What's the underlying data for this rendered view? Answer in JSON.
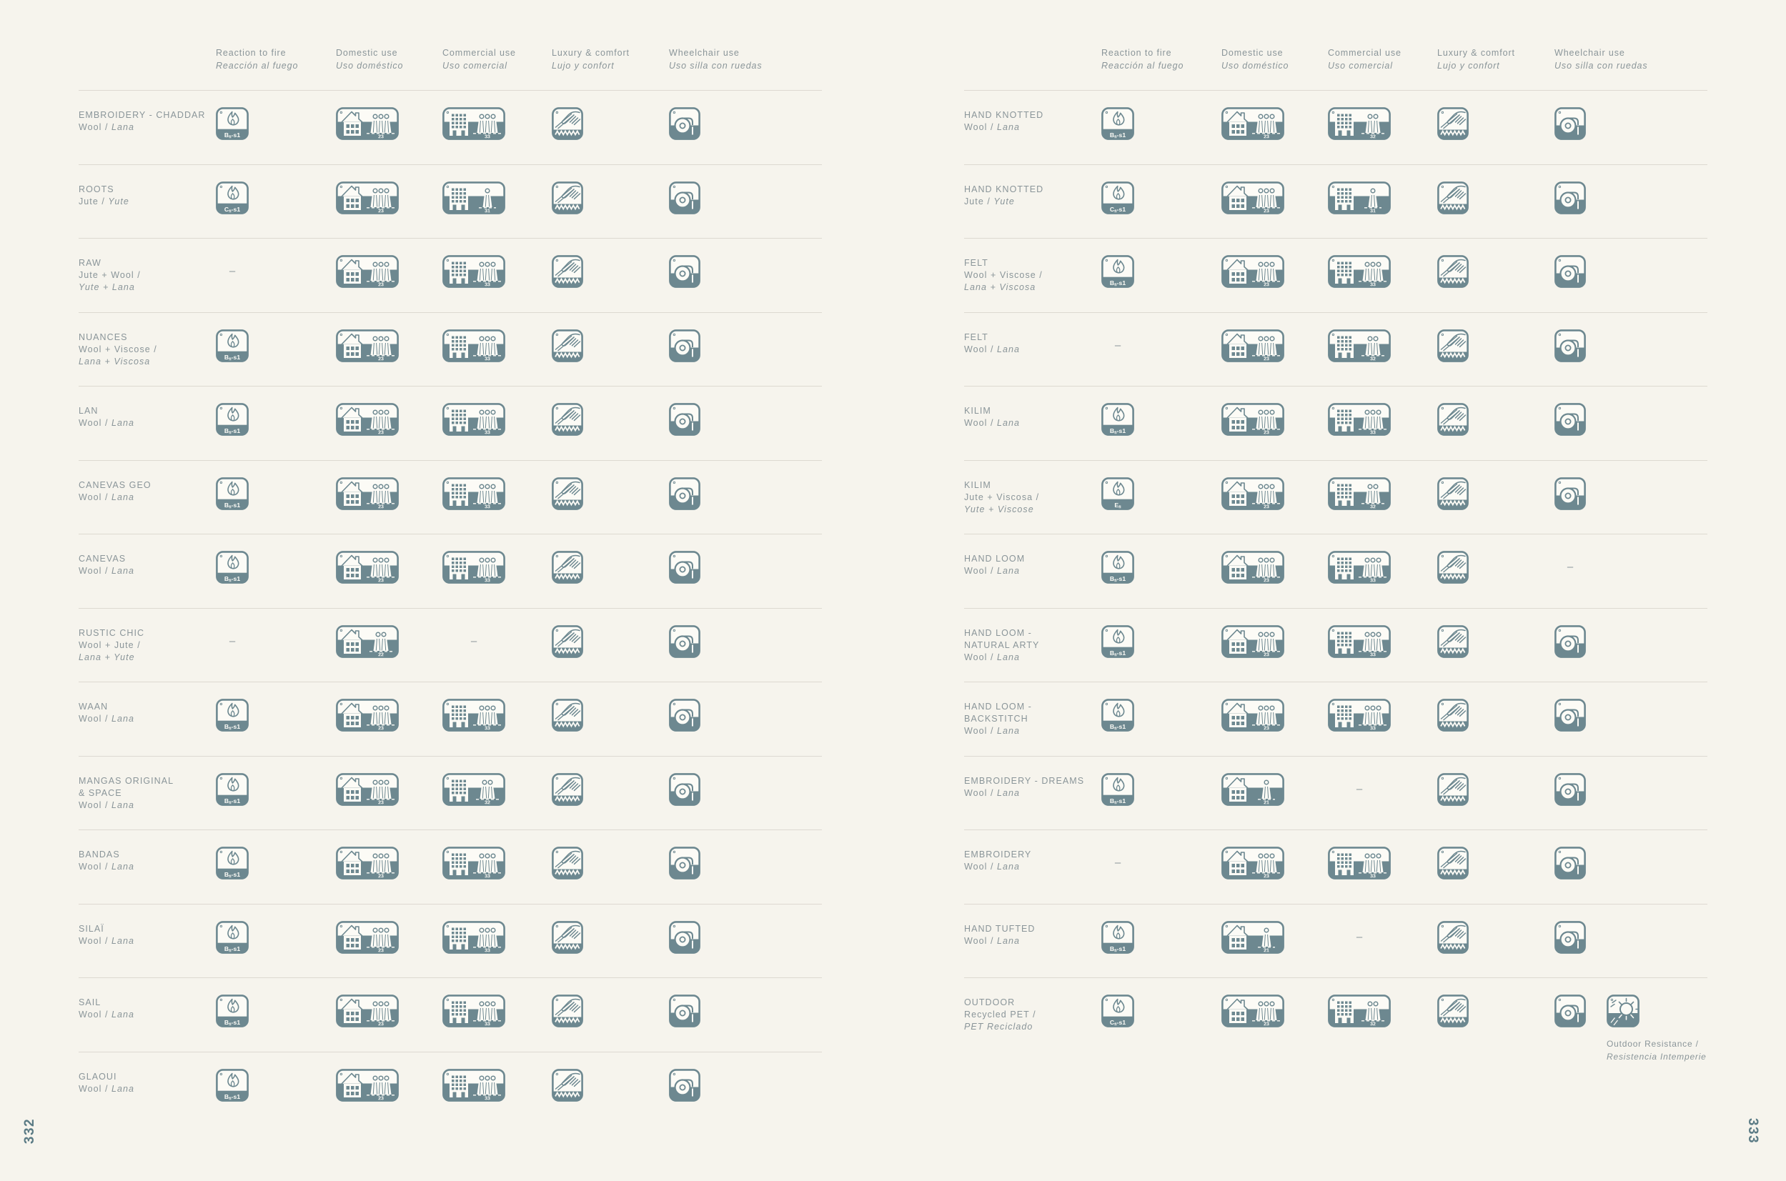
{
  "colors": {
    "background": "#f6f4ed",
    "icon_accent": "#6d8890",
    "text": "#8a9599",
    "separator": "#ddd9d1",
    "page_number": "#5b7b85"
  },
  "columns": [
    {
      "en": "Reaction to fire",
      "es": "Reacción al fuego"
    },
    {
      "en": "Domestic use",
      "es": "Uso doméstico"
    },
    {
      "en": "Commercial use",
      "es": "Uso comercial"
    },
    {
      "en": "Luxury & comfort",
      "es": "Lujo y confort"
    },
    {
      "en": "Wheelchair use",
      "es": "Uso silla con ruedas"
    }
  ],
  "icon_legend": {
    "fire": "fire-rating-icon",
    "domestic": "house-people-icon",
    "commercial": "building-people-icon",
    "luxury": "hand-on-carpet-icon",
    "wheelchair": "wheelchair-wheel-icon",
    "outdoor": "sun-weather-icon"
  },
  "pages": [
    {
      "number": "332",
      "rows": [
        {
          "name": [
            "EMBROIDERY - CHADDAR"
          ],
          "material": [
            {
              "en": "Wool /",
              "es": "Lana"
            }
          ],
          "fire": "Bfl-s1",
          "domestic": "23",
          "commercial": "33",
          "luxury": true,
          "wheelchair": true
        },
        {
          "name": [
            "ROOTS"
          ],
          "material": [
            {
              "en": "Jute /",
              "es": "Yute"
            }
          ],
          "fire": "Cfl-s1",
          "domestic": "23",
          "commercial": "31",
          "luxury": true,
          "wheelchair": true
        },
        {
          "name": [
            "RAW"
          ],
          "material": [
            {
              "en": "Jute + Wool /"
            },
            {
              "es": "Yute + Lana"
            }
          ],
          "fire": null,
          "domestic": "23",
          "commercial": "33",
          "luxury": true,
          "wheelchair": true
        },
        {
          "name": [
            "NUANCES"
          ],
          "material": [
            {
              "en": "Wool + Viscose /"
            },
            {
              "es": "Lana + Viscosa"
            }
          ],
          "fire": "Bfl-s1",
          "domestic": "23",
          "commercial": "33",
          "luxury": true,
          "wheelchair": true
        },
        {
          "name": [
            "LAN"
          ],
          "material": [
            {
              "en": "Wool /",
              "es": "Lana"
            }
          ],
          "fire": "Bfl-s1",
          "domestic": "23",
          "commercial": "33",
          "luxury": true,
          "wheelchair": true
        },
        {
          "name": [
            "CANEVAS GEO"
          ],
          "material": [
            {
              "en": "Wool /",
              "es": "Lana"
            }
          ],
          "fire": "Bfl-s1",
          "domestic": "23",
          "commercial": "33",
          "luxury": true,
          "wheelchair": true
        },
        {
          "name": [
            "CANEVAS"
          ],
          "material": [
            {
              "en": "Wool /",
              "es": "Lana"
            }
          ],
          "fire": "Bfl-s1",
          "domestic": "23",
          "commercial": "33",
          "luxury": true,
          "wheelchair": true
        },
        {
          "name": [
            "RUSTIC CHIC"
          ],
          "material": [
            {
              "en": "Wool + Jute /"
            },
            {
              "es": "Lana + Yute"
            }
          ],
          "fire": null,
          "domestic": "22",
          "commercial": null,
          "luxury": true,
          "wheelchair": true
        },
        {
          "name": [
            "WAAN"
          ],
          "material": [
            {
              "en": "Wool /",
              "es": "Lana"
            }
          ],
          "fire": "Bfl-s1",
          "domestic": "23",
          "commercial": "33",
          "luxury": true,
          "wheelchair": true
        },
        {
          "name": [
            "MANGAS ORIGINAL",
            "& SPACE"
          ],
          "material": [
            {
              "en": "Wool /",
              "es": "Lana"
            }
          ],
          "fire": "Bfl-s1",
          "domestic": "23",
          "commercial": "32",
          "luxury": true,
          "wheelchair": true
        },
        {
          "name": [
            "BANDAS"
          ],
          "material": [
            {
              "en": "Wool /",
              "es": "Lana"
            }
          ],
          "fire": "Bfl-s1",
          "domestic": "23",
          "commercial": "33",
          "luxury": true,
          "wheelchair": true
        },
        {
          "name": [
            "SILAÏ"
          ],
          "material": [
            {
              "en": "Wool /",
              "es": "Lana"
            }
          ],
          "fire": "Bfl-s1",
          "domestic": "23",
          "commercial": "33",
          "luxury": true,
          "wheelchair": true
        },
        {
          "name": [
            "SAIL"
          ],
          "material": [
            {
              "en": "Wool /",
              "es": "Lana"
            }
          ],
          "fire": "Bfl-s1",
          "domestic": "23",
          "commercial": "33",
          "luxury": true,
          "wheelchair": true
        },
        {
          "name": [
            "GLAOUI"
          ],
          "material": [
            {
              "en": "Wool /",
              "es": "Lana"
            }
          ],
          "fire": "Bfl-s1",
          "domestic": "23",
          "commercial": "33",
          "luxury": true,
          "wheelchair": true
        }
      ]
    },
    {
      "number": "333",
      "outdoor_note": {
        "en": "Outdoor Resistance /",
        "es": "Resistencia Intemperie"
      },
      "rows": [
        {
          "name": [
            "HAND KNOTTED"
          ],
          "material": [
            {
              "en": "Wool /",
              "es": "Lana"
            }
          ],
          "fire": "Bfl-s1",
          "domestic": "23",
          "commercial": "32",
          "luxury": true,
          "wheelchair": true
        },
        {
          "name": [
            "HAND KNOTTED"
          ],
          "material": [
            {
              "en": "Jute /",
              "es": "Yute"
            }
          ],
          "fire": "Cfl-s1",
          "domestic": "23",
          "commercial": "31",
          "luxury": true,
          "wheelchair": true
        },
        {
          "name": [
            "FELT"
          ],
          "material": [
            {
              "en": "Wool + Viscose /"
            },
            {
              "es": "Lana + Viscosa"
            }
          ],
          "fire": "Bfl-s1",
          "domestic": "23",
          "commercial": "33",
          "luxury": true,
          "wheelchair": true
        },
        {
          "name": [
            "FELT"
          ],
          "material": [
            {
              "en": "Wool /",
              "es": "Lana"
            }
          ],
          "fire": null,
          "domestic": "23",
          "commercial": "32",
          "luxury": true,
          "wheelchair": true
        },
        {
          "name": [
            "KILIM"
          ],
          "material": [
            {
              "en": "Wool /",
              "es": "Lana"
            }
          ],
          "fire": "Bfl-s1",
          "domestic": "23",
          "commercial": "33",
          "luxury": true,
          "wheelchair": true
        },
        {
          "name": [
            "KILIM"
          ],
          "material": [
            {
              "en": "Jute + Viscosa /"
            },
            {
              "es": "Yute + Viscose"
            }
          ],
          "fire": "Efl",
          "domestic": "23",
          "commercial": "32",
          "luxury": true,
          "wheelchair": true
        },
        {
          "name": [
            "HAND LOOM"
          ],
          "material": [
            {
              "en": "Wool /",
              "es": "Lana"
            }
          ],
          "fire": "Bfl-s1",
          "domestic": "23",
          "commercial": "33",
          "luxury": true,
          "wheelchair": false
        },
        {
          "name": [
            "HAND LOOM -",
            "NATURAL ARTY"
          ],
          "material": [
            {
              "en": "Wool /",
              "es": "Lana"
            }
          ],
          "fire": "Bfl-s1",
          "domestic": "23",
          "commercial": "33",
          "luxury": true,
          "wheelchair": true
        },
        {
          "name": [
            "HAND LOOM -",
            "BACKSTITCH"
          ],
          "material": [
            {
              "en": "Wool /",
              "es": "Lana"
            }
          ],
          "fire": "Bfl-s1",
          "domestic": "23",
          "commercial": "33",
          "luxury": true,
          "wheelchair": true
        },
        {
          "name": [
            "EMBROIDERY - DREAMS"
          ],
          "material": [
            {
              "en": "Wool /",
              "es": "Lana"
            }
          ],
          "fire": "Bfl-s1",
          "domestic": "21",
          "commercial": null,
          "luxury": true,
          "wheelchair": true
        },
        {
          "name": [
            "EMBROIDERY"
          ],
          "material": [
            {
              "en": "Wool /",
              "es": "Lana"
            }
          ],
          "fire": null,
          "domestic": "23",
          "commercial": "33",
          "luxury": true,
          "wheelchair": true
        },
        {
          "name": [
            "HAND TUFTED"
          ],
          "material": [
            {
              "en": "Wool /",
              "es": "Lana"
            }
          ],
          "fire": "Bfl-s1",
          "domestic": "21",
          "commercial": null,
          "luxury": true,
          "wheelchair": true
        },
        {
          "name": [
            "OUTDOOR"
          ],
          "material": [
            {
              "en": "Recycled PET /"
            },
            {
              "es": "PET Reciclado"
            }
          ],
          "fire": "Cfl-s1",
          "domestic": "23",
          "commercial": "32",
          "luxury": true,
          "wheelchair": true,
          "outdoor": true
        }
      ]
    }
  ]
}
